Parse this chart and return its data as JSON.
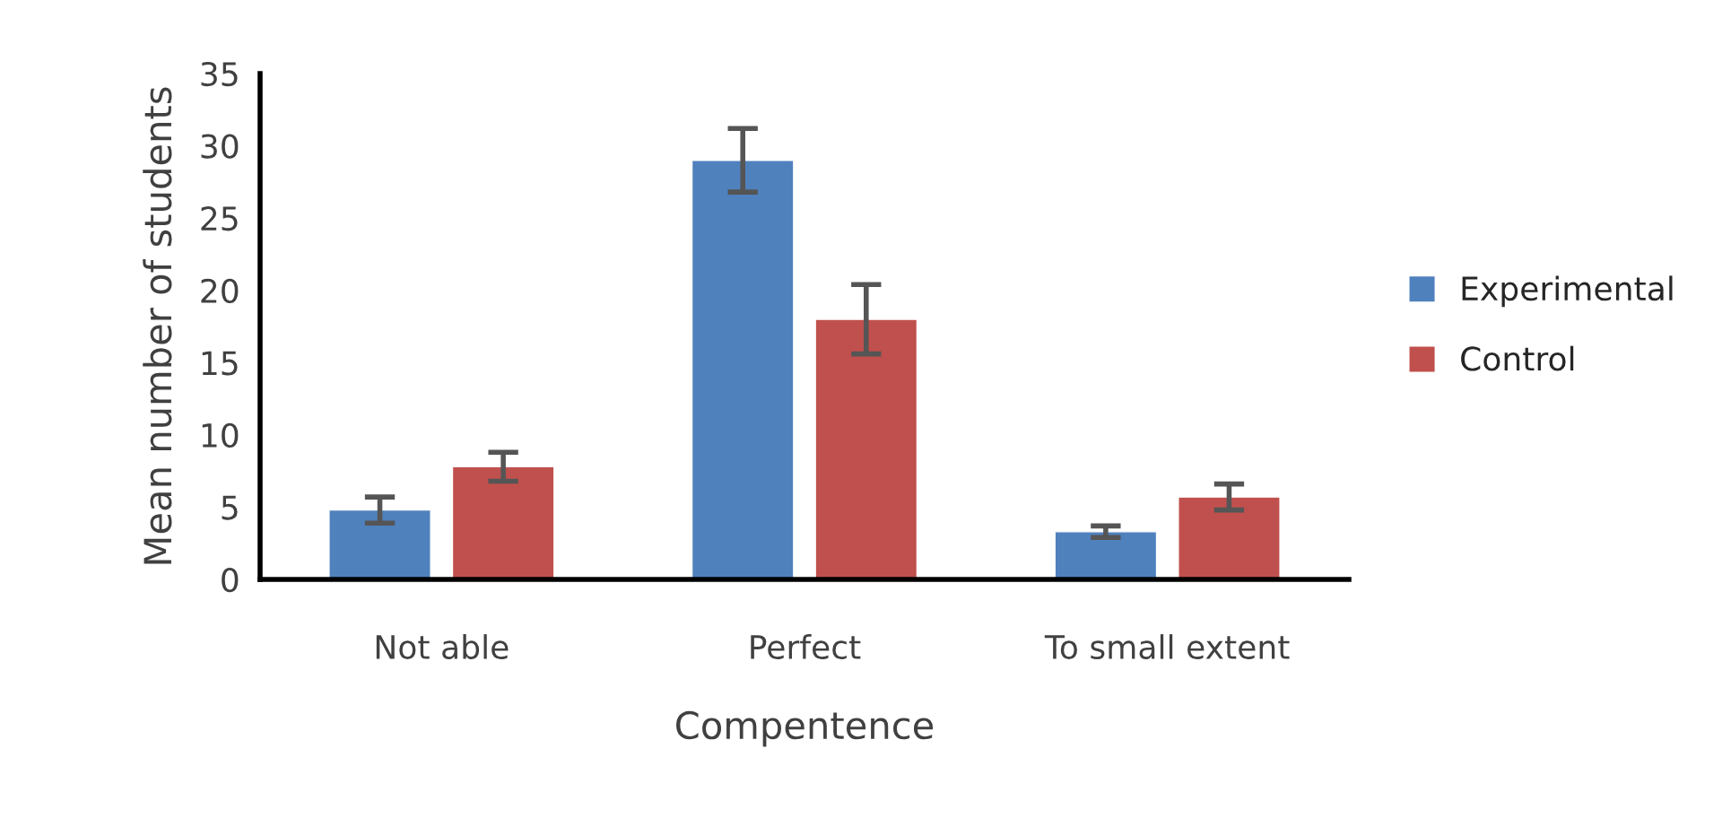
{
  "chart_data": {
    "type": "bar",
    "xlabel": "Compentence",
    "ylabel": "Mean number of students",
    "categories": [
      "Not able",
      "Perfect",
      "To small extent"
    ],
    "series": [
      {
        "name": "Experimental",
        "color": "#4f81bd",
        "values": [
          4.8,
          29.0,
          3.3
        ],
        "errors": [
          0.9,
          2.2,
          0.4
        ]
      },
      {
        "name": "Control",
        "color": "#c0504d",
        "values": [
          7.8,
          18.0,
          5.7
        ],
        "errors": [
          1.0,
          2.4,
          0.9
        ]
      }
    ],
    "ylim": [
      0,
      35
    ],
    "yticks": [
      0,
      5,
      10,
      15,
      20,
      25,
      30,
      35
    ],
    "grid": false,
    "legend": "right"
  }
}
